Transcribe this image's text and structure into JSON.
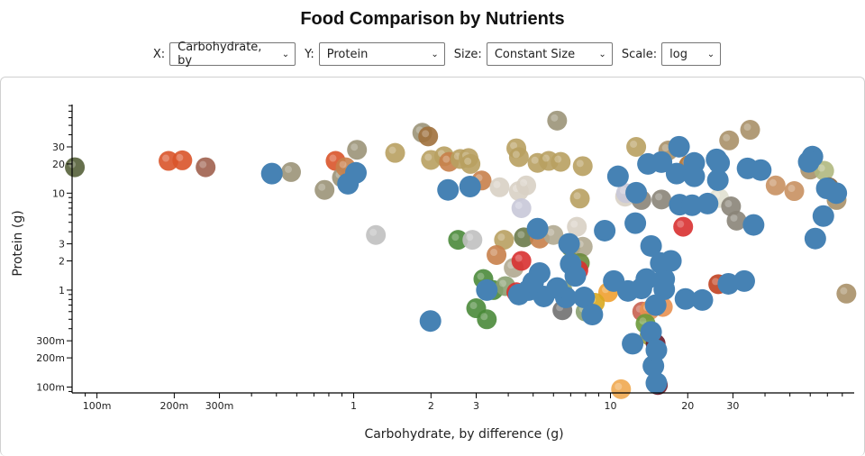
{
  "title": "Food Comparison by Nutrients",
  "controls": {
    "x_label": "X:",
    "x_value": "Carbohydrate, by",
    "y_label": "Y:",
    "y_value": "Protein",
    "size_label": "Size:",
    "size_value": "Constant Size",
    "scale_label": "Scale:",
    "scale_value": "log"
  },
  "colors": {
    "marker": "#4682b4",
    "axis": "#000000"
  },
  "chart_data": {
    "type": "scatter",
    "title": "Food Comparison by Nutrients",
    "xlabel": "Carbohydrate, by difference (g)",
    "ylabel": "Protein (g)",
    "xscale": "log",
    "yscale": "log",
    "xlim": [
      0.08,
      89
    ],
    "ylim": [
      0.087,
      82
    ],
    "x_ticks": [
      {
        "v": 0.1,
        "label": "100m"
      },
      {
        "v": 0.2,
        "label": "200m"
      },
      {
        "v": 0.3,
        "label": "300m"
      },
      {
        "v": 1,
        "label": "1"
      },
      {
        "v": 2,
        "label": "2"
      },
      {
        "v": 3,
        "label": "3"
      },
      {
        "v": 10,
        "label": "10"
      },
      {
        "v": 20,
        "label": "20"
      },
      {
        "v": 30,
        "label": "30"
      }
    ],
    "y_ticks": [
      {
        "v": 0.1,
        "label": "100m"
      },
      {
        "v": 0.2,
        "label": "200m"
      },
      {
        "v": 0.3,
        "label": "300m"
      },
      {
        "v": 1,
        "label": "1"
      },
      {
        "v": 2,
        "label": "2"
      },
      {
        "v": 3,
        "label": "3"
      },
      {
        "v": 10,
        "label": "10"
      },
      {
        "v": 20,
        "label": "20"
      },
      {
        "v": 30,
        "label": "30"
      }
    ],
    "minor_ticks": [
      0.09,
      0.4,
      0.5,
      0.6,
      0.7,
      0.8,
      0.9,
      4,
      5,
      6,
      7,
      8,
      9,
      40,
      50,
      60,
      70,
      80
    ],
    "grid": false,
    "legend": "none",
    "circle_points": [
      [
        0.48,
        15.9
      ],
      [
        1.02,
        16.2
      ],
      [
        0.95,
        12.5
      ],
      [
        2.33,
        10.8
      ],
      [
        2.84,
        11.7
      ],
      [
        10.7,
        14.9
      ],
      [
        14.0,
        20.0
      ],
      [
        15.8,
        20.9
      ],
      [
        18.5,
        30.1
      ],
      [
        18.1,
        15.9
      ],
      [
        21.2,
        20.5
      ],
      [
        21.2,
        14.9
      ],
      [
        25.9,
        22.3
      ],
      [
        26.5,
        20.5
      ],
      [
        26.2,
        13.6
      ],
      [
        34.2,
        18.0
      ],
      [
        38.5,
        17.3
      ],
      [
        61.2,
        23.8
      ],
      [
        59.2,
        21.0
      ],
      [
        12.6,
        10.1
      ],
      [
        18.6,
        7.6
      ],
      [
        20.8,
        7.5
      ],
      [
        23.9,
        7.8
      ],
      [
        12.5,
        4.9
      ],
      [
        36.1,
        4.7
      ],
      [
        62.8,
        3.4
      ],
      [
        67.5,
        5.8
      ],
      [
        69.6,
        11.2
      ],
      [
        75.8,
        10.0
      ],
      [
        9.5,
        4.1
      ],
      [
        5.2,
        4.3
      ],
      [
        6.9,
        3.0
      ],
      [
        14.4,
        2.85
      ],
      [
        15.7,
        1.9
      ],
      [
        16.2,
        1.3
      ],
      [
        17.2,
        2.0
      ],
      [
        7.0,
        1.86
      ],
      [
        5.3,
        1.5
      ],
      [
        4.8,
        1.0
      ],
      [
        4.4,
        0.9
      ],
      [
        3.3,
        1.0
      ],
      [
        5.5,
        0.86
      ],
      [
        6.7,
        0.84
      ],
      [
        7.9,
        0.84
      ],
      [
        8.5,
        0.56
      ],
      [
        10.3,
        1.24
      ],
      [
        11.7,
        0.98
      ],
      [
        13.2,
        1.04
      ],
      [
        16.2,
        1.02
      ],
      [
        19.6,
        0.81
      ],
      [
        22.8,
        0.79
      ],
      [
        28.8,
        1.16
      ],
      [
        33.2,
        1.24
      ],
      [
        1.99,
        0.48
      ],
      [
        12.2,
        0.28
      ],
      [
        14.4,
        0.37
      ],
      [
        14.7,
        0.165
      ],
      [
        15.1,
        0.11
      ],
      [
        15.1,
        0.24
      ],
      [
        5.0,
        1.2
      ],
      [
        6.2,
        1.05
      ],
      [
        7.3,
        1.4
      ],
      [
        13.8,
        1.3
      ],
      [
        15.0,
        0.7
      ]
    ],
    "image_points": [
      {
        "x": 0.082,
        "y": 18.5,
        "kind": "fish"
      },
      {
        "x": 0.19,
        "y": 21.5,
        "kind": "sausage"
      },
      {
        "x": 0.215,
        "y": 21.8,
        "kind": "sausage"
      },
      {
        "x": 0.265,
        "y": 18.5,
        "kind": "ham"
      },
      {
        "x": 0.57,
        "y": 16.5,
        "kind": "cereal"
      },
      {
        "x": 0.77,
        "y": 10.8,
        "kind": "cereal"
      },
      {
        "x": 0.85,
        "y": 21.5,
        "kind": "sausage"
      },
      {
        "x": 1.03,
        "y": 28.0,
        "kind": "cereal"
      },
      {
        "x": 0.9,
        "y": 14.5,
        "kind": "cereal"
      },
      {
        "x": 0.93,
        "y": 18.5,
        "kind": "salad"
      },
      {
        "x": 1.85,
        "y": 42.0,
        "kind": "cereal"
      },
      {
        "x": 1.95,
        "y": 38.5,
        "kind": "cake"
      },
      {
        "x": 1.45,
        "y": 26.0,
        "kind": "meal"
      },
      {
        "x": 2.0,
        "y": 22.0,
        "kind": "meal"
      },
      {
        "x": 2.25,
        "y": 24.0,
        "kind": "meal"
      },
      {
        "x": 2.35,
        "y": 21.0,
        "kind": "salad"
      },
      {
        "x": 2.6,
        "y": 22.5,
        "kind": "meal"
      },
      {
        "x": 2.8,
        "y": 23.0,
        "kind": "meal"
      },
      {
        "x": 2.85,
        "y": 20.0,
        "kind": "meal"
      },
      {
        "x": 3.15,
        "y": 13.5,
        "kind": "salad"
      },
      {
        "x": 4.3,
        "y": 29.0,
        "kind": "meal"
      },
      {
        "x": 4.4,
        "y": 23.5,
        "kind": "meal"
      },
      {
        "x": 5.2,
        "y": 20.5,
        "kind": "meal"
      },
      {
        "x": 5.75,
        "y": 21.5,
        "kind": "meal"
      },
      {
        "x": 6.4,
        "y": 21.0,
        "kind": "meal"
      },
      {
        "x": 7.8,
        "y": 19.0,
        "kind": "meal"
      },
      {
        "x": 6.2,
        "y": 56.0,
        "kind": "cereal"
      },
      {
        "x": 7.6,
        "y": 8.8,
        "kind": "meal"
      },
      {
        "x": 3.7,
        "y": 11.5,
        "kind": "dough"
      },
      {
        "x": 4.4,
        "y": 10.5,
        "kind": "dough"
      },
      {
        "x": 4.7,
        "y": 12.0,
        "kind": "dough"
      },
      {
        "x": 4.5,
        "y": 7.0,
        "kind": "yogurt"
      },
      {
        "x": 7.4,
        "y": 4.5,
        "kind": "dough"
      },
      {
        "x": 11.4,
        "y": 9.2,
        "kind": "dough"
      },
      {
        "x": 1.22,
        "y": 3.7,
        "kind": "milk"
      },
      {
        "x": 2.55,
        "y": 3.3,
        "kind": "broccoli"
      },
      {
        "x": 2.9,
        "y": 3.3,
        "kind": "milk"
      },
      {
        "x": 3.85,
        "y": 3.3,
        "kind": "meal"
      },
      {
        "x": 4.6,
        "y": 3.5,
        "kind": "bowl"
      },
      {
        "x": 5.3,
        "y": 3.4,
        "kind": "salad"
      },
      {
        "x": 6.0,
        "y": 3.7,
        "kind": "mushroom"
      },
      {
        "x": 7.0,
        "y": 2.8,
        "kind": "artichoke"
      },
      {
        "x": 7.8,
        "y": 2.8,
        "kind": "mushroom"
      },
      {
        "x": 3.6,
        "y": 2.3,
        "kind": "salad"
      },
      {
        "x": 4.2,
        "y": 1.7,
        "kind": "mushroom"
      },
      {
        "x": 4.5,
        "y": 2.0,
        "kind": "tomato"
      },
      {
        "x": 7.6,
        "y": 1.9,
        "kind": "artichoke"
      },
      {
        "x": 7.5,
        "y": 1.6,
        "kind": "tomato"
      },
      {
        "x": 3.2,
        "y": 1.3,
        "kind": "broccoli"
      },
      {
        "x": 3.5,
        "y": 1.0,
        "kind": "broccoli"
      },
      {
        "x": 3.9,
        "y": 1.1,
        "kind": "cucumber"
      },
      {
        "x": 4.3,
        "y": 0.95,
        "kind": "tomato"
      },
      {
        "x": 5.5,
        "y": 0.85,
        "kind": "artichoke"
      },
      {
        "x": 6.5,
        "y": 1.0,
        "kind": "cucumber"
      },
      {
        "x": 3.0,
        "y": 0.65,
        "kind": "broccoli"
      },
      {
        "x": 3.3,
        "y": 0.5,
        "kind": "broccoli"
      },
      {
        "x": 9.8,
        "y": 0.95,
        "kind": "apricot"
      },
      {
        "x": 8.7,
        "y": 0.74,
        "kind": "flower"
      },
      {
        "x": 6.5,
        "y": 0.62,
        "kind": "eggplant"
      },
      {
        "x": 8.0,
        "y": 0.6,
        "kind": "cucumber"
      },
      {
        "x": 13.3,
        "y": 0.6,
        "kind": "fruit"
      },
      {
        "x": 14.2,
        "y": 0.62,
        "kind": "peach"
      },
      {
        "x": 16.0,
        "y": 0.67,
        "kind": "peach"
      },
      {
        "x": 13.7,
        "y": 0.45,
        "kind": "pepper"
      },
      {
        "x": 14.2,
        "y": 0.34,
        "kind": "pear"
      },
      {
        "x": 15.0,
        "y": 0.28,
        "kind": "wine"
      },
      {
        "x": 11.0,
        "y": 0.095,
        "kind": "juice"
      },
      {
        "x": 15.3,
        "y": 0.105,
        "kind": "wine"
      },
      {
        "x": 26.3,
        "y": 1.15,
        "kind": "sauce"
      },
      {
        "x": 19.2,
        "y": 4.5,
        "kind": "tomato"
      },
      {
        "x": 12.6,
        "y": 30.0,
        "kind": "meal"
      },
      {
        "x": 16.8,
        "y": 27.5,
        "kind": "bread"
      },
      {
        "x": 29.0,
        "y": 35.0,
        "kind": "bread"
      },
      {
        "x": 35.0,
        "y": 45.0,
        "kind": "bread"
      },
      {
        "x": 20.2,
        "y": 19.5,
        "kind": "pastry"
      },
      {
        "x": 11.5,
        "y": 10.0,
        "kind": "yogurt"
      },
      {
        "x": 13.2,
        "y": 8.5,
        "kind": "oats"
      },
      {
        "x": 15.8,
        "y": 8.6,
        "kind": "oats"
      },
      {
        "x": 26.5,
        "y": 8.9,
        "kind": "cheese"
      },
      {
        "x": 29.5,
        "y": 7.3,
        "kind": "oats"
      },
      {
        "x": 31.0,
        "y": 5.2,
        "kind": "oats"
      },
      {
        "x": 44.0,
        "y": 12.0,
        "kind": "potato"
      },
      {
        "x": 52.0,
        "y": 10.5,
        "kind": "potato"
      },
      {
        "x": 60.0,
        "y": 17.5,
        "kind": "bread"
      },
      {
        "x": 68.0,
        "y": 17.0,
        "kind": "grain"
      },
      {
        "x": 71.0,
        "y": 11.5,
        "kind": "wheat"
      },
      {
        "x": 76.0,
        "y": 8.5,
        "kind": "bread"
      },
      {
        "x": 83.0,
        "y": 0.92,
        "kind": "bread"
      }
    ]
  }
}
